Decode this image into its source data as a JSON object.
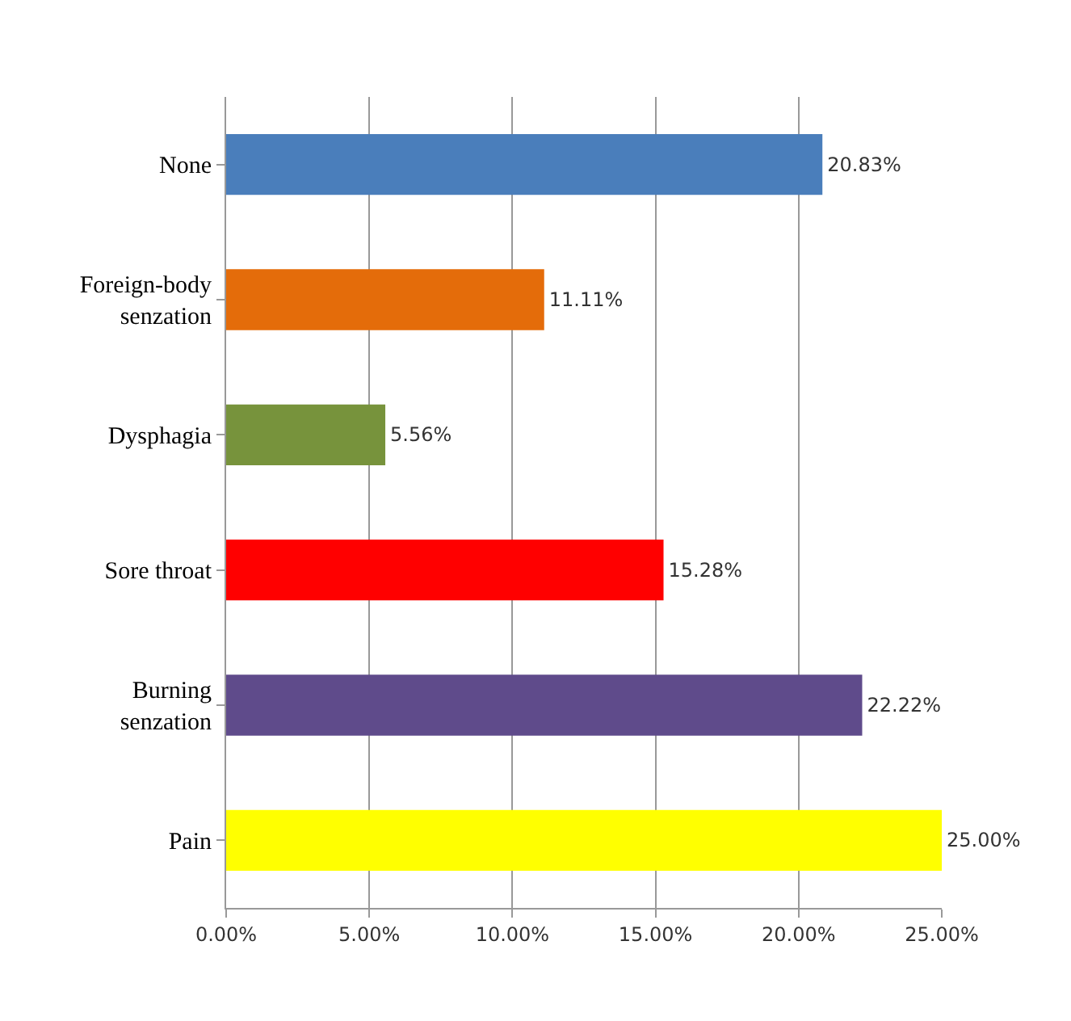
{
  "chart_data": {
    "type": "bar",
    "orientation": "horizontal",
    "categories": [
      "None",
      "Foreign-body senzation",
      "Dysphagia",
      "Sore throat",
      "Burning senzation",
      "Pain"
    ],
    "values": [
      20.83,
      11.11,
      5.56,
      15.28,
      22.22,
      25.0
    ],
    "colors": [
      "#4a7ebb",
      "#e46c0a",
      "#77933c",
      "#ff0000",
      "#5f4b8b",
      "#ffff00"
    ],
    "value_labels": [
      "20.83%",
      "11.11%",
      "5.56%",
      "15.28%",
      "22.22%",
      "25.00%"
    ],
    "xlim": [
      0,
      25
    ],
    "xticks": [
      {
        "value": 0,
        "label": "0.00%"
      },
      {
        "value": 5,
        "label": "5.00%"
      },
      {
        "value": 10,
        "label": "10.00%"
      },
      {
        "value": 15,
        "label": "15.00%"
      },
      {
        "value": 20,
        "label": "20.00%"
      },
      {
        "value": 25,
        "label": "25.00%"
      }
    ],
    "grid": "x"
  }
}
